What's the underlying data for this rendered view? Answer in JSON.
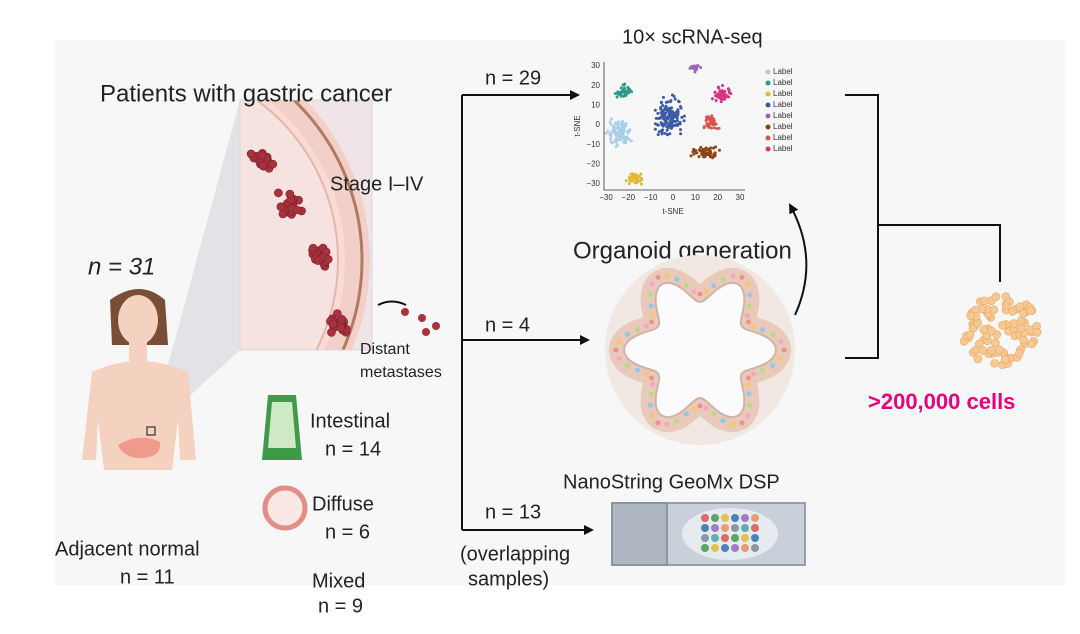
{
  "patients": {
    "title": "Patients with gastric cancer",
    "n": "n = 31",
    "stage": "Stage I–IV",
    "metastases": [
      "Distant",
      "metastases"
    ]
  },
  "subtypes": [
    {
      "name": "Intestinal",
      "n": "n = 14"
    },
    {
      "name": "Diffuse",
      "n": "n = 6"
    },
    {
      "name": "Mixed",
      "n": "n = 9"
    }
  ],
  "normal": {
    "label": "Adjacent normal",
    "n": "n = 11"
  },
  "branches": [
    {
      "n": "n = 29"
    },
    {
      "n": "n = 4"
    },
    {
      "n": "n = 13",
      "note": [
        "(overlapping",
        "samples)"
      ]
    }
  ],
  "scrna": {
    "title": "10× scRNA-seq",
    "xlabel": "t-SNE",
    "ylabel": "t-SNE",
    "xticks": [
      "−30",
      "−20",
      "−10",
      "0",
      "10",
      "20",
      "30"
    ],
    "yticks": [
      "30",
      "20",
      "10",
      "0",
      "−10",
      "−20",
      "−30"
    ],
    "legend": [
      "Label",
      "Label",
      "Label",
      "Label",
      "Label",
      "Label",
      "Label",
      "Label"
    ]
  },
  "organoid": {
    "title": "Organoid generation"
  },
  "nanostring": {
    "title": "NanoString GeoMx DSP"
  },
  "cells": {
    "label": ">200,000 cells"
  }
}
